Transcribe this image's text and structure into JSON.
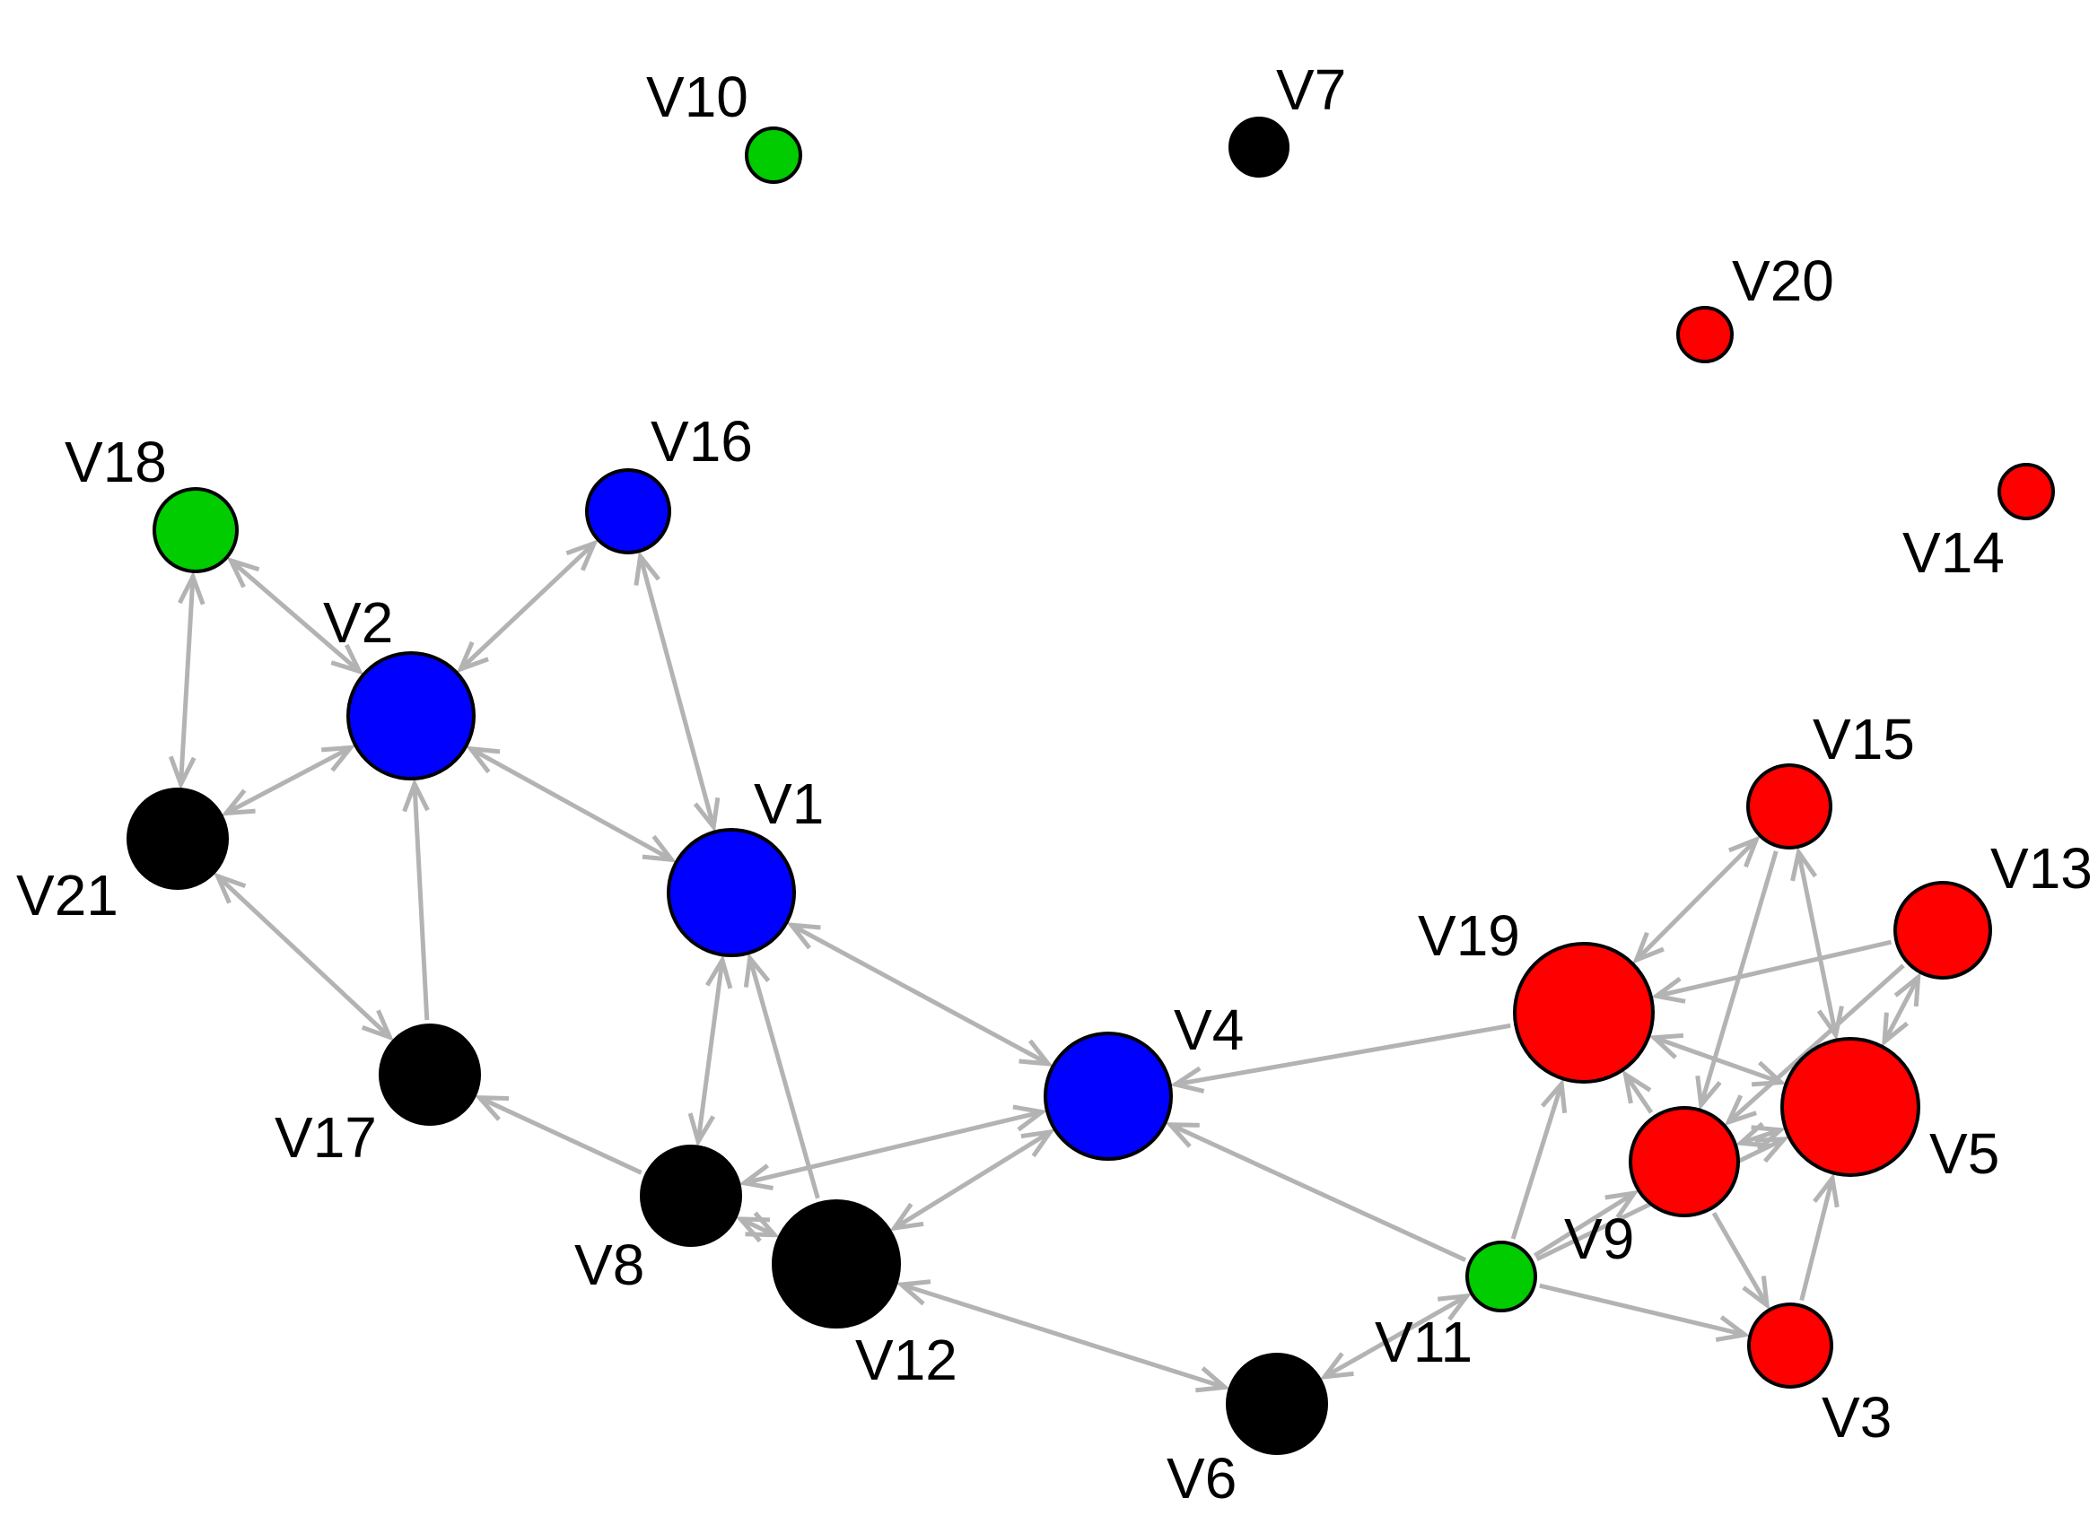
{
  "diagram": {
    "edge_color": "#b3b3b3",
    "node_border_color": "#000000",
    "colors": {
      "blue": "#0000ff",
      "green": "#00cc00",
      "red": "#ff0000",
      "black": "#000000"
    },
    "nodes": [
      {
        "id": "V1",
        "label": "V1",
        "color": "blue"
      },
      {
        "id": "V2",
        "label": "V2",
        "color": "blue"
      },
      {
        "id": "V3",
        "label": "V3",
        "color": "red"
      },
      {
        "id": "V4",
        "label": "V4",
        "color": "blue"
      },
      {
        "id": "V5",
        "label": "V5",
        "color": "red"
      },
      {
        "id": "V6",
        "label": "V6",
        "color": "black"
      },
      {
        "id": "V7",
        "label": "V7",
        "color": "black"
      },
      {
        "id": "V8",
        "label": "V8",
        "color": "black"
      },
      {
        "id": "V9",
        "label": "V9",
        "color": "red"
      },
      {
        "id": "V10",
        "label": "V10",
        "color": "green"
      },
      {
        "id": "V11",
        "label": "V11",
        "color": "green"
      },
      {
        "id": "V12",
        "label": "V12",
        "color": "black"
      },
      {
        "id": "V13",
        "label": "V13",
        "color": "red"
      },
      {
        "id": "V14",
        "label": "V14",
        "color": "red"
      },
      {
        "id": "V15",
        "label": "V15",
        "color": "red"
      },
      {
        "id": "V16",
        "label": "V16",
        "color": "blue"
      },
      {
        "id": "V17",
        "label": "V17",
        "color": "black"
      },
      {
        "id": "V18",
        "label": "V18",
        "color": "green"
      },
      {
        "id": "V19",
        "label": "V19",
        "color": "red"
      },
      {
        "id": "V20",
        "label": "V20",
        "color": "red"
      },
      {
        "id": "V21",
        "label": "V21",
        "color": "black"
      }
    ],
    "edges": [
      {
        "from": "V18",
        "to": "V2",
        "bidirectional": true
      },
      {
        "from": "V16",
        "to": "V2",
        "bidirectional": true
      },
      {
        "from": "V16",
        "to": "V1",
        "bidirectional": true
      },
      {
        "from": "V18",
        "to": "V21",
        "bidirectional": true
      },
      {
        "from": "V2",
        "to": "V21",
        "bidirectional": true
      },
      {
        "from": "V2",
        "to": "V1",
        "bidirectional": true
      },
      {
        "from": "V21",
        "to": "V17",
        "bidirectional": true
      },
      {
        "from": "V17",
        "to": "V2",
        "bidirectional": false
      },
      {
        "from": "V1",
        "to": "V8",
        "bidirectional": true
      },
      {
        "from": "V12",
        "to": "V1",
        "bidirectional": false
      },
      {
        "from": "V1",
        "to": "V4",
        "bidirectional": true
      },
      {
        "from": "V8",
        "to": "V17",
        "bidirectional": false
      },
      {
        "from": "V8",
        "to": "V4",
        "bidirectional": true
      },
      {
        "from": "V12",
        "to": "V4",
        "bidirectional": true
      },
      {
        "from": "V8",
        "to": "V12",
        "bidirectional": true
      },
      {
        "from": "V12",
        "to": "V6",
        "bidirectional": true
      },
      {
        "from": "V19",
        "to": "V4",
        "bidirectional": false
      },
      {
        "from": "V11",
        "to": "V4",
        "bidirectional": false
      },
      {
        "from": "V11",
        "to": "V6",
        "bidirectional": true
      },
      {
        "from": "V11",
        "to": "V19",
        "bidirectional": false
      },
      {
        "from": "V11",
        "to": "V9",
        "bidirectional": false
      },
      {
        "from": "V11",
        "to": "V5",
        "bidirectional": false
      },
      {
        "from": "V11",
        "to": "V3",
        "bidirectional": false
      },
      {
        "from": "V15",
        "to": "V19",
        "bidirectional": true
      },
      {
        "from": "V13",
        "to": "V19",
        "bidirectional": false
      },
      {
        "from": "V19",
        "to": "V5",
        "bidirectional": true
      },
      {
        "from": "V15",
        "to": "V9",
        "bidirectional": false
      },
      {
        "from": "V15",
        "to": "V5",
        "bidirectional": true
      },
      {
        "from": "V13",
        "to": "V5",
        "bidirectional": true
      },
      {
        "from": "V13",
        "to": "V9",
        "bidirectional": false
      },
      {
        "from": "V9",
        "to": "V19",
        "bidirectional": false
      },
      {
        "from": "V9",
        "to": "V5",
        "bidirectional": true
      },
      {
        "from": "V9",
        "to": "V3",
        "bidirectional": false
      },
      {
        "from": "V3",
        "to": "V5",
        "bidirectional": false
      }
    ]
  }
}
